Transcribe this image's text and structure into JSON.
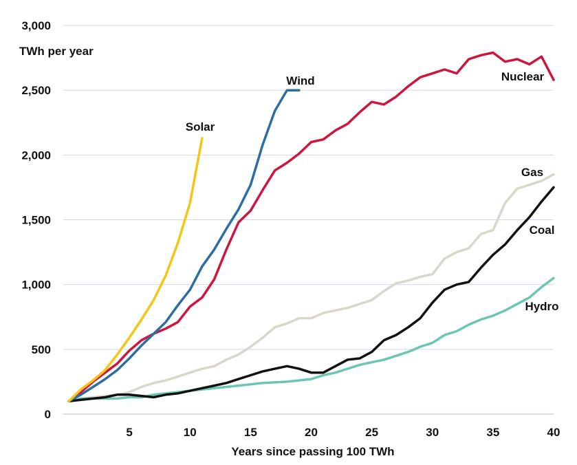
{
  "chart_data": {
    "type": "line",
    "title": "",
    "ylabel": "TWh per year",
    "xlabel": "Years since passing 100 TWh",
    "xlim": [
      0,
      40
    ],
    "ylim": [
      0,
      3000
    ],
    "xticks": [
      5,
      10,
      15,
      20,
      25,
      30,
      35,
      40
    ],
    "xtick_labels": [
      "5",
      "10",
      "15",
      "20",
      "25",
      "30",
      "35",
      "40"
    ],
    "yticks": [
      0,
      500,
      1000,
      1500,
      2000,
      2500,
      3000
    ],
    "ytick_labels": [
      "0",
      "500",
      "1,000",
      "1,500",
      "2,000",
      "2,500",
      "3,000"
    ],
    "grid": "horizontal",
    "legend": "inline labels",
    "series": [
      {
        "name": "Solar",
        "color": "#F5C518",
        "x": [
          0,
          1,
          2,
          3,
          4,
          5,
          6,
          7,
          8,
          9,
          10,
          11
        ],
        "y": [
          100,
          190,
          260,
          340,
          460,
          590,
          730,
          880,
          1070,
          1320,
          1630,
          2130
        ]
      },
      {
        "name": "Wind",
        "color": "#2E6DA4",
        "x": [
          0,
          1,
          2,
          3,
          4,
          5,
          6,
          7,
          8,
          9,
          10,
          11,
          12,
          13,
          14,
          15,
          16,
          17,
          18,
          19
        ],
        "y": [
          100,
          150,
          210,
          270,
          340,
          430,
          530,
          620,
          710,
          840,
          960,
          1140,
          1270,
          1430,
          1580,
          1770,
          2080,
          2340,
          2500,
          2500
        ]
      },
      {
        "name": "Nuclear",
        "color": "#D0153C",
        "x": [
          0,
          1,
          2,
          3,
          4,
          5,
          6,
          7,
          8,
          9,
          10,
          11,
          12,
          13,
          14,
          15,
          16,
          17,
          18,
          19,
          20,
          21,
          22,
          23,
          24,
          25,
          26,
          27,
          28,
          29,
          30,
          31,
          32,
          33,
          34,
          35,
          36,
          37,
          38,
          39,
          40
        ],
        "y": [
          100,
          170,
          250,
          320,
          390,
          490,
          570,
          620,
          660,
          710,
          830,
          900,
          1040,
          1270,
          1480,
          1570,
          1730,
          1880,
          1940,
          2010,
          2100,
          2120,
          2190,
          2240,
          2330,
          2410,
          2390,
          2450,
          2530,
          2600,
          2630,
          2660,
          2630,
          2740,
          2770,
          2790,
          2720,
          2740,
          2700,
          2760,
          2580
        ]
      },
      {
        "name": "Gas",
        "color": "#D9D6CC",
        "x": [
          0,
          1,
          2,
          3,
          4,
          5,
          6,
          7,
          8,
          9,
          10,
          11,
          12,
          13,
          14,
          15,
          16,
          17,
          18,
          19,
          20,
          21,
          22,
          23,
          24,
          25,
          26,
          27,
          28,
          29,
          30,
          31,
          32,
          33,
          34,
          35,
          36,
          37,
          38,
          39,
          40
        ],
        "y": [
          100,
          120,
          130,
          140,
          150,
          170,
          210,
          240,
          260,
          290,
          320,
          350,
          370,
          420,
          460,
          520,
          590,
          670,
          700,
          740,
          740,
          780,
          800,
          820,
          850,
          880,
          950,
          1010,
          1030,
          1060,
          1080,
          1200,
          1250,
          1280,
          1390,
          1420,
          1630,
          1740,
          1770,
          1800,
          1850
        ]
      },
      {
        "name": "Coal",
        "color": "#111111",
        "x": [
          0,
          1,
          2,
          3,
          4,
          5,
          6,
          7,
          8,
          9,
          10,
          11,
          12,
          13,
          14,
          15,
          16,
          17,
          18,
          19,
          20,
          21,
          22,
          23,
          24,
          25,
          26,
          27,
          28,
          29,
          30,
          31,
          32,
          33,
          34,
          35,
          36,
          37,
          38,
          39,
          40
        ],
        "y": [
          100,
          110,
          120,
          130,
          150,
          150,
          140,
          130,
          150,
          160,
          180,
          200,
          220,
          240,
          270,
          300,
          330,
          350,
          370,
          350,
          320,
          320,
          370,
          420,
          430,
          480,
          570,
          610,
          670,
          740,
          860,
          960,
          1000,
          1020,
          1130,
          1230,
          1310,
          1420,
          1520,
          1640,
          1750
        ]
      },
      {
        "name": "Hydro",
        "color": "#6CC6B3",
        "x": [
          0,
          1,
          2,
          3,
          4,
          5,
          6,
          7,
          8,
          9,
          10,
          11,
          12,
          13,
          14,
          15,
          16,
          17,
          18,
          19,
          20,
          21,
          22,
          23,
          24,
          25,
          26,
          27,
          28,
          29,
          30,
          31,
          32,
          33,
          34,
          35,
          36,
          37,
          38,
          39,
          40
        ],
        "y": [
          100,
          120,
          120,
          120,
          120,
          130,
          130,
          150,
          160,
          170,
          180,
          190,
          200,
          210,
          220,
          230,
          240,
          245,
          250,
          260,
          270,
          300,
          320,
          350,
          380,
          400,
          420,
          450,
          480,
          520,
          550,
          610,
          640,
          690,
          730,
          760,
          800,
          850,
          900,
          980,
          1050
        ]
      }
    ]
  }
}
